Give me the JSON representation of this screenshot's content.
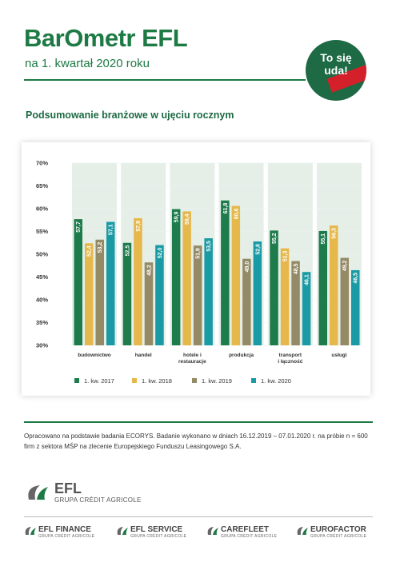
{
  "header": {
    "title": "BarOmetr EFL",
    "subtitle": "na 1. kwartał 2020 roku",
    "badge": "To się\nuda!"
  },
  "chart_data": {
    "type": "bar",
    "title": "Podsumowanie branżowe w ujęciu rocznym",
    "categories": [
      "budownictwo",
      "handel",
      "hotele i\nrestauracje",
      "produkcja",
      "transport\ni łączność",
      "usługi"
    ],
    "series": [
      {
        "name": "1. kw. 2017",
        "color": "#1e7c4c",
        "values": [
          57.7,
          52.5,
          59.9,
          61.8,
          55.2,
          55.1
        ],
        "value_labels": [
          "57,7",
          "52,5",
          "59,9",
          "61,8",
          "55,2",
          "55,1"
        ]
      },
      {
        "name": "1. kw. 2018",
        "color": "#e6b84c",
        "values": [
          52.4,
          57.9,
          59.4,
          60.6,
          51.3,
          56.3
        ],
        "value_labels": [
          "52,4",
          "57,9",
          "59,4",
          "60,6",
          "51,3",
          "56,3"
        ]
      },
      {
        "name": "1. kw. 2019",
        "color": "#958a66",
        "values": [
          53.2,
          48.2,
          51.9,
          49.0,
          48.5,
          49.2
        ],
        "value_labels": [
          "53,2",
          "48,2",
          "51,9",
          "49,0",
          "48,5",
          "49,2"
        ]
      },
      {
        "name": "1. kw. 2020",
        "color": "#1a9aa4",
        "values": [
          57.1,
          52.0,
          53.5,
          52.8,
          46.1,
          46.5
        ],
        "value_labels": [
          "57,1",
          "52,0",
          "53,5",
          "52,8",
          "46,1",
          "46,5"
        ]
      }
    ],
    "ylim": [
      30,
      70
    ],
    "yticks": [
      {
        "value": 30,
        "label": "30%"
      },
      {
        "value": 35,
        "label": "35%"
      },
      {
        "value": 40,
        "label": "40%"
      },
      {
        "value": 45,
        "label": "45%"
      },
      {
        "value": 50,
        "label": "50%"
      },
      {
        "value": 55,
        "label": "55%"
      },
      {
        "value": 60,
        "label": "60%"
      },
      {
        "value": 65,
        "label": "65%"
      },
      {
        "value": 70,
        "label": "70%"
      }
    ],
    "legend": "bottom"
  },
  "footer": {
    "note": "Opracowano na podstawie badania ECORYS. Badanie wykonano w dniach 16.12.2019 – 07.01.2020 r. na próbie n = 600 firm z sektora MŚP na zlecenie Europejskiego Funduszu Leasingowego S.A.",
    "logo": "EFL",
    "logo_sub": "GRUPA CRÉDIT AGRICOLE",
    "brands": [
      {
        "name": "EFL FINANCE",
        "sub": "GRUPA CRÉDIT AGRICOLE"
      },
      {
        "name": "EFL SERVICE",
        "sub": "GRUPA CRÉDIT AGRICOLE"
      },
      {
        "name": "CAREFLEET",
        "sub": "GRUPA CRÉDIT AGRICOLE"
      },
      {
        "name": "EUROFACTOR",
        "sub": "GRUPA CRÉDIT AGRICOLE"
      }
    ]
  }
}
